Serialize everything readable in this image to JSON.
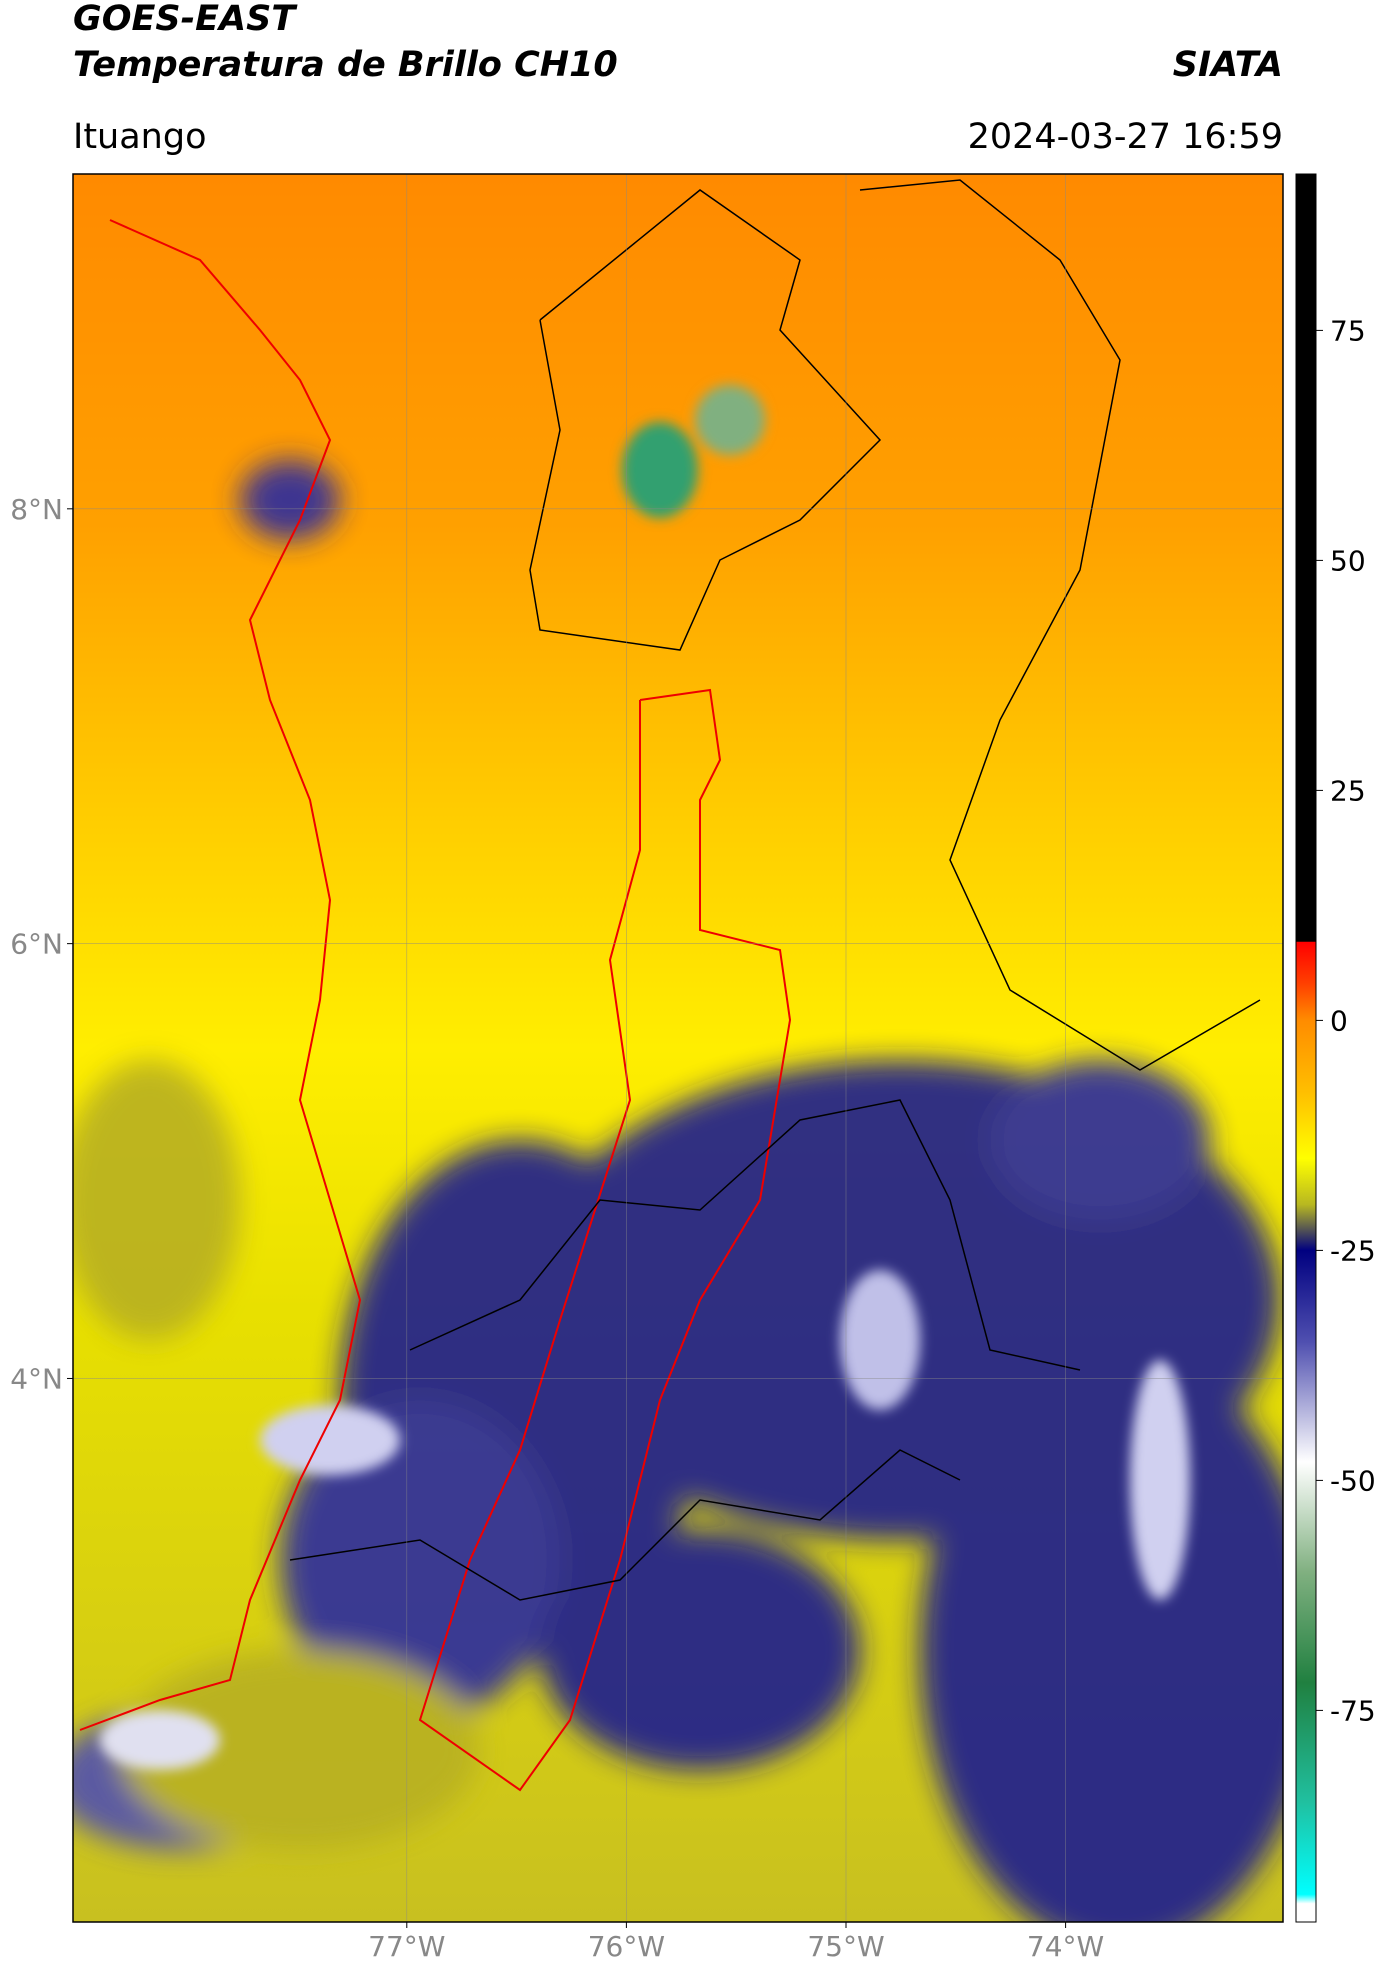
{
  "header": {
    "title": "GOES-EAST",
    "subtitle": "Temperatura de Brillo CH10",
    "source": "SIATA",
    "location": "Ituango",
    "datetime": "2024-03-27 16:59"
  },
  "map": {
    "xlim": [
      -78.52,
      -73.01
    ],
    "ylim": [
      1.5,
      9.54
    ],
    "xticks": [
      {
        "value": -77,
        "label": "77°W"
      },
      {
        "value": -76,
        "label": "76°W"
      },
      {
        "value": -75,
        "label": "75°W"
      },
      {
        "value": -74,
        "label": "74°W"
      }
    ],
    "yticks": [
      {
        "value": 8,
        "label": "8°N"
      },
      {
        "value": 6,
        "label": "6°N"
      },
      {
        "value": 4,
        "label": "4°N"
      }
    ],
    "grid": true
  },
  "colorbar": {
    "lim": [
      -98,
      92
    ],
    "ticks": [
      75,
      50,
      25,
      0,
      -25,
      -50,
      -75
    ],
    "stops": [
      {
        "value": 92,
        "color": "#000000"
      },
      {
        "value": 8.6,
        "color": "#000000"
      },
      {
        "value": 8.5,
        "color": "#ff0000"
      },
      {
        "value": 4,
        "color": "#ff4000"
      },
      {
        "value": 0,
        "color": "#ff8c00"
      },
      {
        "value": -8,
        "color": "#ffc000"
      },
      {
        "value": -15,
        "color": "#ffff00"
      },
      {
        "value": -20,
        "color": "#b8b820"
      },
      {
        "value": -25,
        "color": "#000080"
      },
      {
        "value": -35,
        "color": "#5050b0"
      },
      {
        "value": -48,
        "color": "#ffffff"
      },
      {
        "value": -60,
        "color": "#80b080"
      },
      {
        "value": -72,
        "color": "#208040"
      },
      {
        "value": -85,
        "color": "#20c0a0"
      },
      {
        "value": -95,
        "color": "#00ffff"
      },
      {
        "value": -96,
        "color": "#ffffff"
      },
      {
        "value": -98,
        "color": "#ffffff"
      }
    ]
  }
}
